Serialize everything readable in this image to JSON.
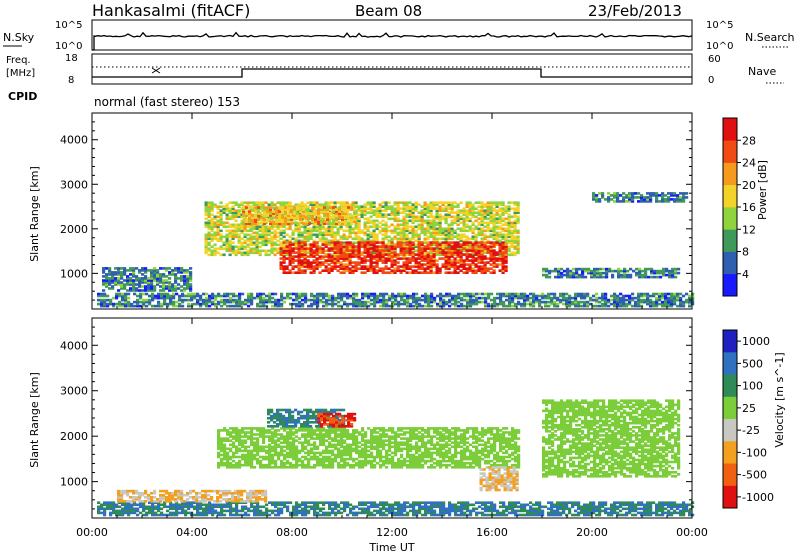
{
  "header": {
    "station": "Hankasalmi (fitACF)",
    "beam": "Beam 08",
    "date": "23/Feb/2013"
  },
  "noise_panel": {
    "left_label": "N.Sky",
    "right_label": "N.Search",
    "left_ticks": [
      "10^5",
      "10^0"
    ],
    "right_ticks": [
      "10^5",
      "10^0"
    ]
  },
  "freq_panel": {
    "left_label_line1": "Freq.",
    "left_label_line2": "[MHz]",
    "left_ticks": [
      "18",
      "8"
    ],
    "right_label": "Nave",
    "right_ticks": [
      "60",
      "0"
    ]
  },
  "cpid": {
    "label": "CPID",
    "value": "normal (fast stereo) 153"
  },
  "x_axis": {
    "label": "Time UT",
    "ticks": [
      "00:00",
      "04:00",
      "08:00",
      "12:00",
      "16:00",
      "20:00",
      "00:00"
    ]
  },
  "colors": {
    "power_scale": [
      "#1a1aff",
      "#2f5fb0",
      "#3f9a5a",
      "#8fd43c",
      "#f3d32a",
      "#f59a1c",
      "#f24a14",
      "#e01010"
    ],
    "velocity_scale": [
      "#2020c0",
      "#3070c0",
      "#2e8b57",
      "#7ccd3a",
      "#c8c8c0",
      "#f3a020",
      "#f06010",
      "#e01010"
    ]
  },
  "chart_data": [
    {
      "type": "heatmap",
      "ylabel": "Slant Range [km]",
      "yticks": [
        "1000",
        "2000",
        "3000",
        "4000"
      ],
      "ylim": [
        200,
        4600
      ],
      "xlim": [
        "00:00",
        "24:00"
      ],
      "colorbar": {
        "label": "Power [dB]",
        "ticks": [
          "4",
          "8",
          "12",
          "16",
          "20",
          "24",
          "28"
        ],
        "range": [
          0,
          32
        ]
      },
      "regions": [
        {
          "t0": 0.2,
          "t1": 24.0,
          "r0": 250,
          "r1": 550,
          "value": 8
        },
        {
          "t0": 0.4,
          "t1": 4.0,
          "r0": 600,
          "r1": 1100,
          "value": 8
        },
        {
          "t0": 4.5,
          "t1": 17.0,
          "r0": 1400,
          "r1": 2600,
          "value": 16
        },
        {
          "t0": 7.5,
          "t1": 16.5,
          "r0": 1000,
          "r1": 1700,
          "value": 28
        },
        {
          "t0": 6.0,
          "t1": 10.5,
          "r0": 2100,
          "r1": 2500,
          "value": 20
        },
        {
          "t0": 18.0,
          "t1": 23.5,
          "r0": 900,
          "r1": 1100,
          "value": 8
        },
        {
          "t0": 20.0,
          "t1": 23.8,
          "r0": 2600,
          "r1": 2800,
          "value": 8
        }
      ]
    },
    {
      "type": "heatmap",
      "ylabel": "Slant Range [km]",
      "yticks": [
        "1000",
        "2000",
        "3000",
        "4000"
      ],
      "ylim": [
        200,
        4600
      ],
      "xlim": [
        "00:00",
        "24:00"
      ],
      "colorbar": {
        "label": "Velocity [m s^-1]",
        "ticks": [
          "1000",
          "500",
          "100",
          "25",
          "-25",
          "-100",
          "-500",
          "-1000"
        ],
        "range": [
          -1000,
          1000
        ]
      },
      "regions": [
        {
          "t0": 0.2,
          "t1": 24.0,
          "r0": 250,
          "r1": 550,
          "value": 100
        },
        {
          "t0": 1.0,
          "t1": 7.0,
          "r0": 550,
          "r1": 800,
          "value": -100
        },
        {
          "t0": 5.0,
          "t1": 17.0,
          "r0": 1300,
          "r1": 2200,
          "value": 0
        },
        {
          "t0": 7.0,
          "t1": 10.0,
          "r0": 2200,
          "r1": 2600,
          "value": 100
        },
        {
          "t0": 9.0,
          "t1": 10.5,
          "r0": 2200,
          "r1": 2500,
          "value": -1000
        },
        {
          "t0": 15.5,
          "t1": 17.0,
          "r0": 800,
          "r1": 1300,
          "value": -100
        },
        {
          "t0": 18.0,
          "t1": 23.5,
          "r0": 1100,
          "r1": 2800,
          "value": 0
        }
      ]
    }
  ]
}
